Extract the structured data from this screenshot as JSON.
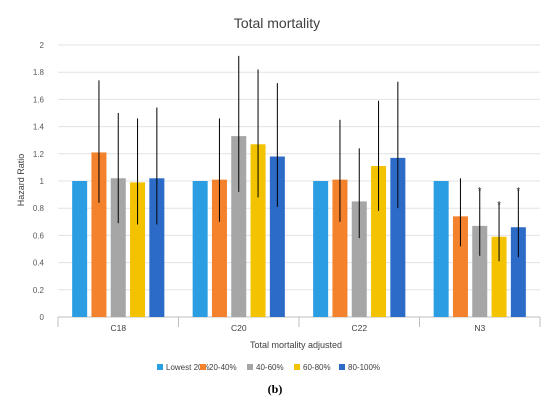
{
  "caption": "(b)",
  "chart_data": {
    "type": "bar",
    "title": "Total mortality",
    "xlabel": "Total mortality adjusted",
    "ylabel": "Hazard Ratio",
    "ylim": [
      0,
      2
    ],
    "yticks": [
      "0",
      "0.2",
      "0.4",
      "0.6",
      "0.8",
      "1",
      "1.2",
      "1.4",
      "1.6",
      "1.8",
      "2"
    ],
    "categories": [
      "C18",
      "C20",
      "C22",
      "N3"
    ],
    "grid": true,
    "legend_position": "bottom",
    "significance_marker": "*",
    "series": [
      {
        "name": "Lowest 20%",
        "color": "#2b9de3",
        "values": [
          1.0,
          1.0,
          1.0,
          1.0
        ],
        "err_low": [
          null,
          null,
          null,
          null
        ],
        "err_high": [
          null,
          null,
          null,
          null
        ],
        "significant": [
          false,
          false,
          false,
          false
        ]
      },
      {
        "name": "20-40%",
        "color": "#f4812c",
        "values": [
          1.21,
          1.01,
          1.01,
          0.74
        ],
        "err_low": [
          0.84,
          0.7,
          0.7,
          0.52
        ],
        "err_high": [
          1.74,
          1.46,
          1.45,
          1.02
        ],
        "significant": [
          false,
          false,
          false,
          false
        ]
      },
      {
        "name": "40-60%",
        "color": "#a6a6a6",
        "values": [
          1.02,
          1.33,
          0.85,
          0.67
        ],
        "err_low": [
          0.69,
          0.92,
          0.58,
          0.45
        ],
        "err_high": [
          1.5,
          1.92,
          1.24,
          0.94
        ],
        "significant": [
          false,
          false,
          false,
          true
        ]
      },
      {
        "name": "60-80%",
        "color": "#f3c200",
        "values": [
          0.99,
          1.27,
          1.11,
          0.59
        ],
        "err_low": [
          0.68,
          0.88,
          0.78,
          0.41
        ],
        "err_high": [
          1.46,
          1.82,
          1.59,
          0.84
        ],
        "significant": [
          false,
          false,
          false,
          true
        ]
      },
      {
        "name": "80-100%",
        "color": "#2d6bc8",
        "values": [
          1.02,
          1.18,
          1.17,
          0.66
        ],
        "err_low": [
          0.68,
          0.81,
          0.8,
          0.44
        ],
        "err_high": [
          1.54,
          1.72,
          1.73,
          0.94
        ],
        "significant": [
          false,
          false,
          false,
          true
        ]
      }
    ]
  }
}
